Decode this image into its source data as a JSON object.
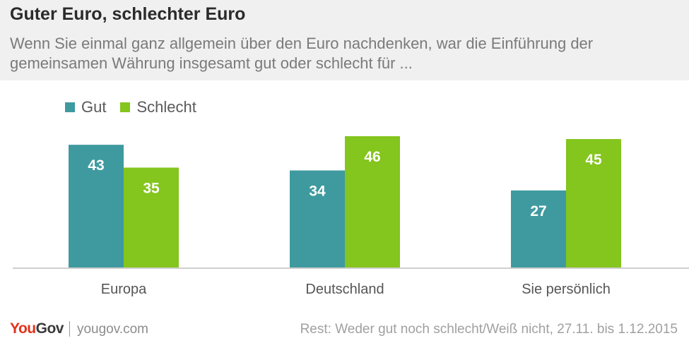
{
  "header": {
    "title": "Guter Euro, schlechter Euro",
    "subtitle": "Wenn Sie einmal ganz allgemein über den Euro nachdenken, war die Einführung der gemeinsamen Währung insgesamt gut oder schlecht für ..."
  },
  "colors": {
    "gut": "#3f9a9f",
    "schlecht": "#84c51e",
    "axis": "#cfcfcf",
    "brand_red": "#e2321b"
  },
  "chart_data": {
    "type": "bar",
    "categories": [
      "Europa",
      "Deutschland",
      "Sie persönlich"
    ],
    "series": [
      {
        "name": "Gut",
        "values": [
          43,
          34,
          27
        ]
      },
      {
        "name": "Schlecht",
        "values": [
          35,
          46,
          45
        ]
      }
    ],
    "ylim": [
      0,
      46
    ],
    "legend": "top-left",
    "grid": false
  },
  "footer": {
    "brand_you": "You",
    "brand_gov": "Gov",
    "brand_url": "yougov.com",
    "note": "Rest: Weder gut noch schlecht/Weiß nicht, 27.11. bis 1.12.2015"
  }
}
